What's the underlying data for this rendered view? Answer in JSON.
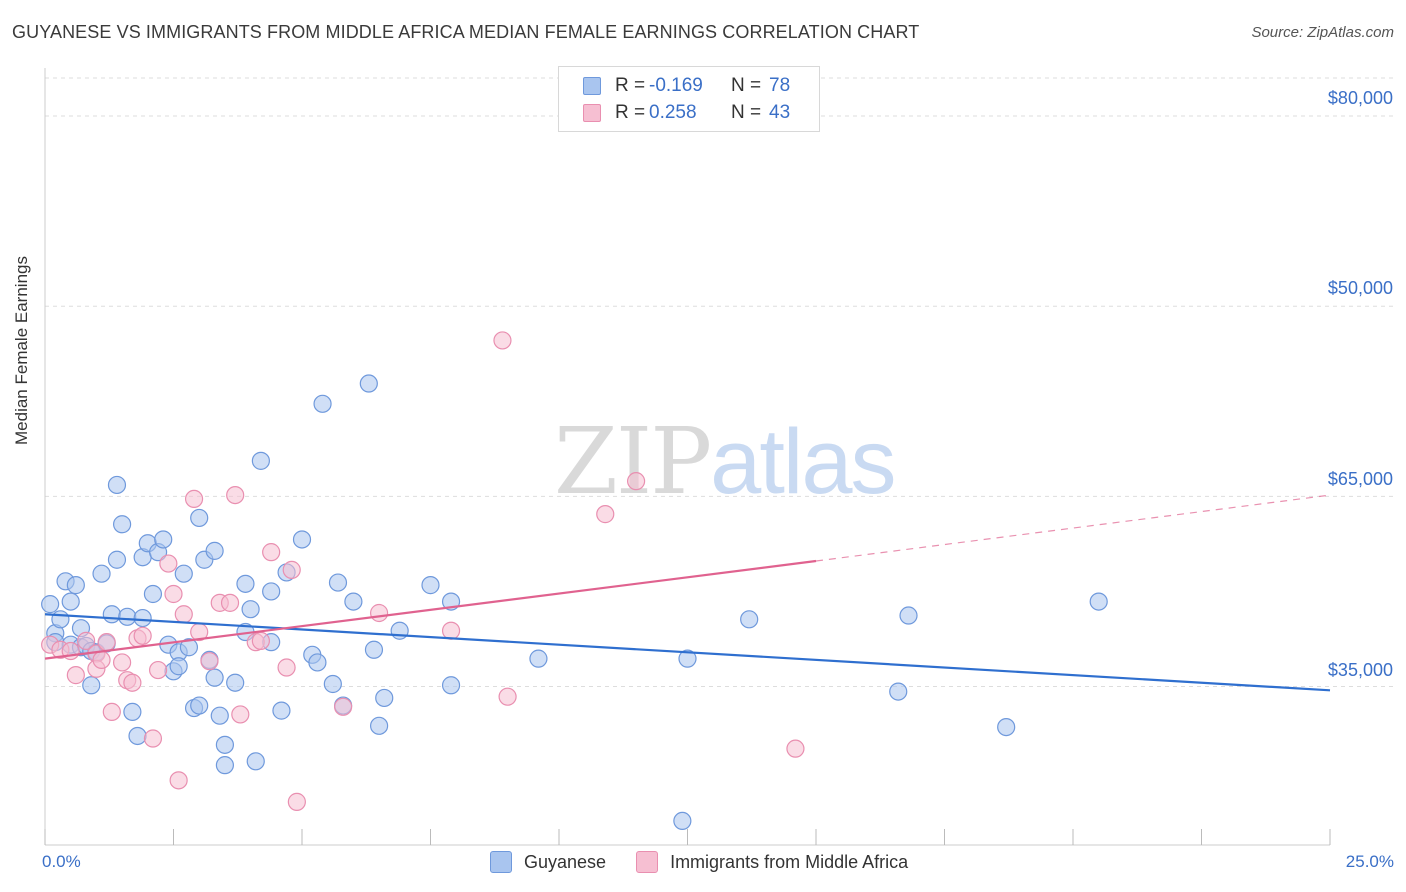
{
  "title": "GUYANESE VS IMMIGRANTS FROM MIDDLE AFRICA MEDIAN FEMALE EARNINGS CORRELATION CHART",
  "source": "Source: ZipAtlas.com",
  "watermark": {
    "zip": "ZIP",
    "atlas": "atlas"
  },
  "legend_top": [
    {
      "r_label": "R =",
      "r_value": "-0.169",
      "n_label": "N =",
      "n_value": "78"
    },
    {
      "r_label": "R =",
      "r_value": "0.258",
      "n_label": "N =",
      "n_value": "43"
    }
  ],
  "colors": {
    "blue_fill": "#a9c5ef",
    "blue_edge": "#6f99dc",
    "blue_line": "#2f6fcf",
    "pink_fill": "#f6bfd2",
    "pink_edge": "#e98fb0",
    "pink_line": "#e0628f",
    "axis_text": "#3a6fc7",
    "grid": "#dddddd"
  },
  "chart_data": {
    "type": "scatter",
    "title": "GUYANESE VS IMMIGRANTS FROM MIDDLE AFRICA MEDIAN FEMALE EARNINGS CORRELATION CHART",
    "xlabel": "",
    "ylabel": "Median Female Earnings",
    "xlim": [
      0,
      25
    ],
    "ylim": [
      22500,
      83000
    ],
    "x_tick_labels": [
      "0.0%",
      "25.0%"
    ],
    "y_ticks": [
      35000,
      50000,
      65000,
      80000
    ],
    "y_tick_labels": [
      "$35,000",
      "$50,000",
      "$65,000",
      "$80,000"
    ],
    "grid": true,
    "legend_placement": "bottom",
    "series": [
      {
        "name": "Guyanese",
        "color": "#a9c5ef",
        "r": -0.169,
        "n": 78,
        "trend": {
          "x": [
            0,
            25
          ],
          "y": [
            40700,
            34700
          ],
          "style": "solid"
        },
        "points": [
          [
            0.1,
            41500
          ],
          [
            0.2,
            39200
          ],
          [
            0.2,
            38500
          ],
          [
            0.3,
            40300
          ],
          [
            0.4,
            43300
          ],
          [
            0.5,
            41700
          ],
          [
            0.5,
            38300
          ],
          [
            0.6,
            43000
          ],
          [
            0.7,
            38100
          ],
          [
            0.7,
            39600
          ],
          [
            0.8,
            38200
          ],
          [
            0.9,
            37800
          ],
          [
            0.9,
            35100
          ],
          [
            1.0,
            37700
          ],
          [
            1.1,
            43900
          ],
          [
            1.2,
            38400
          ],
          [
            1.3,
            40700
          ],
          [
            1.4,
            50900
          ],
          [
            1.4,
            45000
          ],
          [
            1.5,
            47800
          ],
          [
            1.6,
            40500
          ],
          [
            1.7,
            33000
          ],
          [
            1.8,
            31100
          ],
          [
            1.9,
            40400
          ],
          [
            1.9,
            45200
          ],
          [
            2.0,
            46300
          ],
          [
            2.1,
            42300
          ],
          [
            2.2,
            45600
          ],
          [
            2.3,
            46600
          ],
          [
            2.4,
            38300
          ],
          [
            2.5,
            36200
          ],
          [
            2.6,
            37700
          ],
          [
            2.6,
            36600
          ],
          [
            2.7,
            43900
          ],
          [
            2.8,
            38100
          ],
          [
            2.9,
            33300
          ],
          [
            3.0,
            48300
          ],
          [
            3.0,
            33500
          ],
          [
            3.1,
            45000
          ],
          [
            3.2,
            37100
          ],
          [
            3.3,
            45700
          ],
          [
            3.3,
            35700
          ],
          [
            3.4,
            32700
          ],
          [
            3.5,
            30400
          ],
          [
            3.5,
            28800
          ],
          [
            3.7,
            35300
          ],
          [
            3.9,
            43100
          ],
          [
            3.9,
            39300
          ],
          [
            4.0,
            41100
          ],
          [
            4.1,
            29100
          ],
          [
            4.2,
            52800
          ],
          [
            4.4,
            38500
          ],
          [
            4.4,
            42500
          ],
          [
            4.6,
            33100
          ],
          [
            4.7,
            44000
          ],
          [
            5.0,
            46600
          ],
          [
            5.2,
            37500
          ],
          [
            5.3,
            36900
          ],
          [
            5.4,
            57300
          ],
          [
            5.6,
            35200
          ],
          [
            5.7,
            43200
          ],
          [
            5.8,
            33500
          ],
          [
            6.0,
            41700
          ],
          [
            6.3,
            58900
          ],
          [
            6.4,
            37900
          ],
          [
            6.5,
            31900
          ],
          [
            6.6,
            34100
          ],
          [
            6.9,
            39400
          ],
          [
            7.5,
            43000
          ],
          [
            7.9,
            41700
          ],
          [
            7.9,
            35100
          ],
          [
            9.6,
            37200
          ],
          [
            12.4,
            24400
          ],
          [
            12.5,
            37200
          ],
          [
            13.7,
            40300
          ],
          [
            16.6,
            34600
          ],
          [
            16.8,
            40600
          ],
          [
            18.7,
            31800
          ],
          [
            20.5,
            41700
          ]
        ]
      },
      {
        "name": "Immigrants from Middle Africa",
        "color": "#f6bfd2",
        "r": 0.258,
        "n": 43,
        "trend": {
          "x": [
            0,
            15,
            25
          ],
          "y": [
            37200,
            44900,
            50100
          ],
          "solid_until": 15,
          "style": "solid-then-dashed"
        },
        "points": [
          [
            0.1,
            38300
          ],
          [
            0.3,
            37900
          ],
          [
            0.5,
            37800
          ],
          [
            0.6,
            35900
          ],
          [
            0.8,
            38600
          ],
          [
            1.0,
            37600
          ],
          [
            1.0,
            36400
          ],
          [
            1.1,
            37100
          ],
          [
            1.2,
            38500
          ],
          [
            1.3,
            33000
          ],
          [
            1.5,
            36900
          ],
          [
            1.6,
            35500
          ],
          [
            1.7,
            35300
          ],
          [
            1.8,
            38800
          ],
          [
            1.9,
            39000
          ],
          [
            2.1,
            30900
          ],
          [
            2.2,
            36300
          ],
          [
            2.4,
            44700
          ],
          [
            2.5,
            42300
          ],
          [
            2.6,
            27600
          ],
          [
            2.7,
            40700
          ],
          [
            2.9,
            49800
          ],
          [
            3.0,
            39300
          ],
          [
            3.2,
            37000
          ],
          [
            3.4,
            41600
          ],
          [
            3.6,
            41600
          ],
          [
            3.7,
            50100
          ],
          [
            3.8,
            32800
          ],
          [
            4.1,
            38500
          ],
          [
            4.2,
            38600
          ],
          [
            4.4,
            45600
          ],
          [
            4.7,
            36500
          ],
          [
            4.8,
            44200
          ],
          [
            4.9,
            25900
          ],
          [
            5.8,
            33400
          ],
          [
            6.5,
            40800
          ],
          [
            7.9,
            39400
          ],
          [
            8.9,
            62300
          ],
          [
            9.0,
            34200
          ],
          [
            10.9,
            48600
          ],
          [
            11.5,
            51200
          ],
          [
            14.6,
            30100
          ]
        ]
      }
    ]
  }
}
